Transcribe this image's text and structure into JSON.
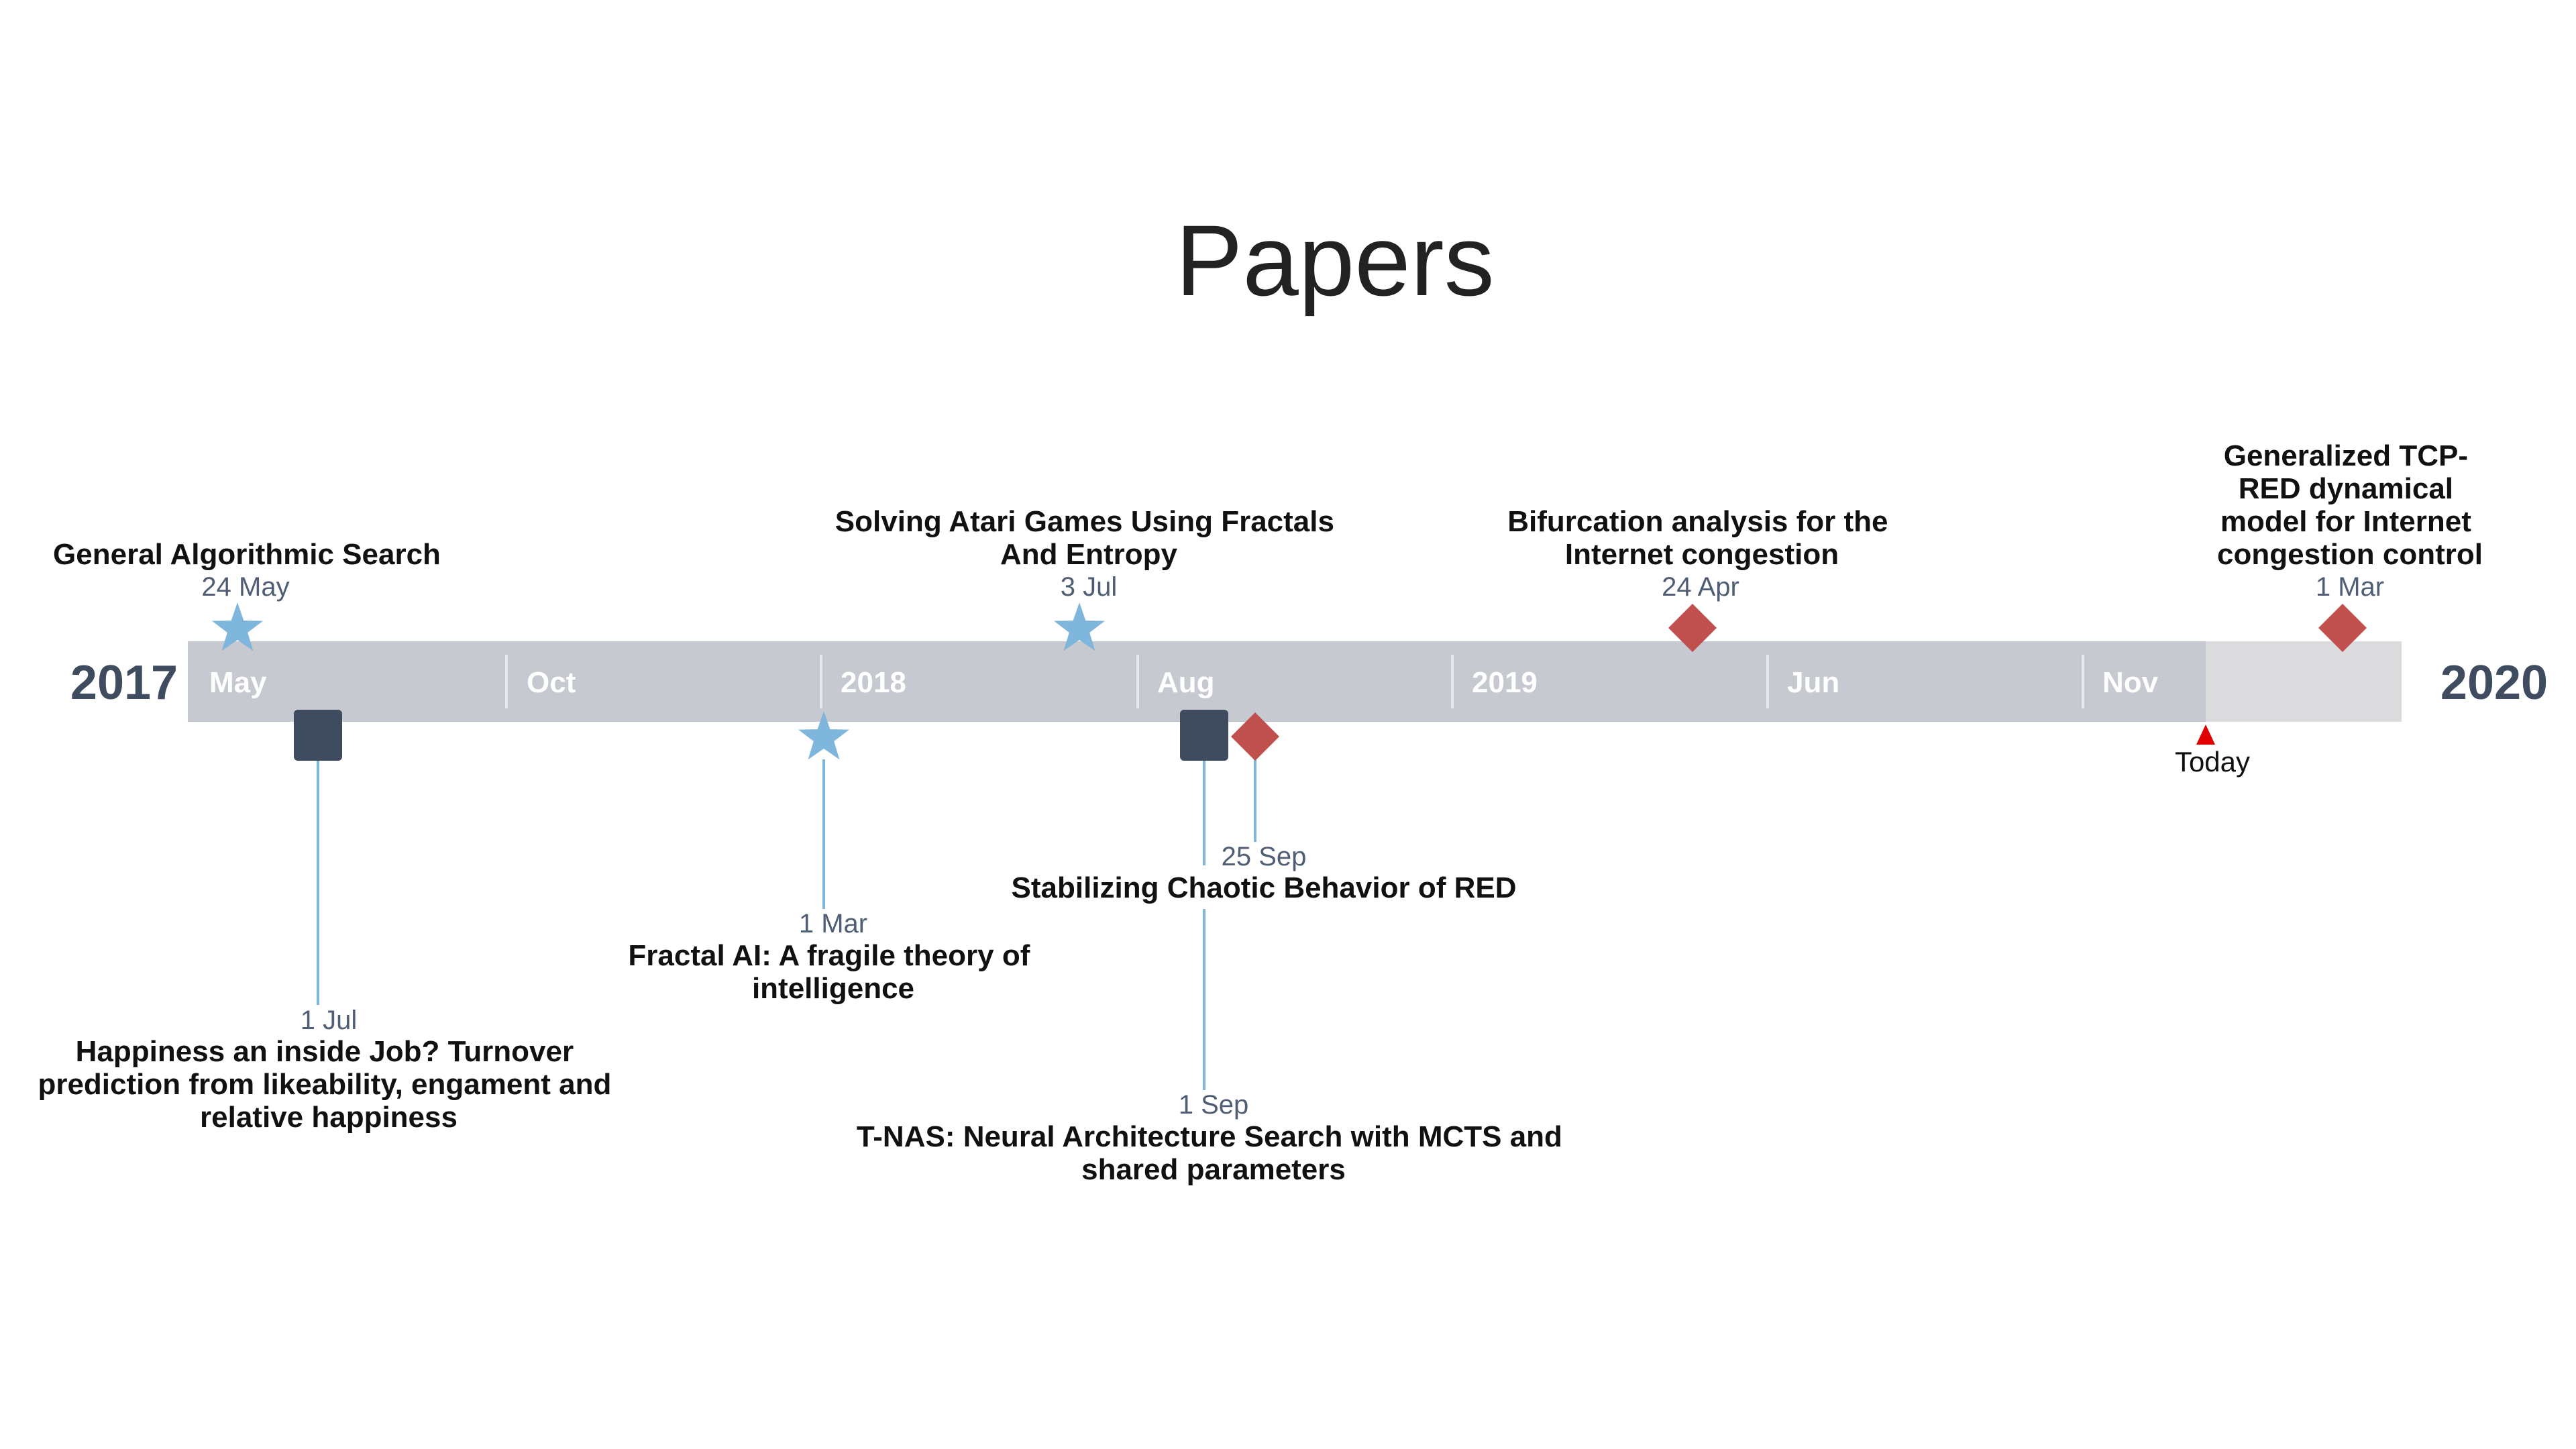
{
  "title": "Papers",
  "timeline": {
    "start_label": "2017",
    "end_label": "2020",
    "ticks": [
      "May",
      "Oct",
      "2018",
      "Aug",
      "2019",
      "Jun",
      "Nov"
    ],
    "today_label": "Today",
    "colors": {
      "bar": "#c7c9d0",
      "future": "#dcdcde",
      "divider": "#e8e9ec",
      "star": "#7fb6dc",
      "diamond": "#c0504d",
      "square": "#3f4b5e",
      "connector": "#7fb6dc",
      "today_marker": "#e00000"
    }
  },
  "events": [
    {
      "date": "24 May",
      "title": "General Algorithmic Search",
      "shape": "star-icon"
    },
    {
      "date": "1 Jul",
      "title": "Happiness an inside Job? Turnover prediction from likeability, engament and relative happiness",
      "shape": "square-icon"
    },
    {
      "date": "1 Mar",
      "title": "Fractal AI: A fragile theory of intelligence",
      "shape": "star-icon"
    },
    {
      "date": "3 Jul",
      "title": "Solving Atari Games Using Fractals And Entropy",
      "shape": "star-icon"
    },
    {
      "date": "1 Sep",
      "title": "T-NAS: Neural Architecture Search with MCTS and shared parameters",
      "shape": "square-icon"
    },
    {
      "date": "25 Sep",
      "title": "Stabilizing Chaotic Behavior of RED",
      "shape": "diamond-icon"
    },
    {
      "date": "24 Apr",
      "title": "Bifurcation analysis for the Internet congestion",
      "shape": "diamond-icon"
    },
    {
      "date": "1 Mar",
      "title": "Generalized TCP-RED dynamical model for Internet congestion control",
      "shape": "diamond-icon"
    }
  ]
}
